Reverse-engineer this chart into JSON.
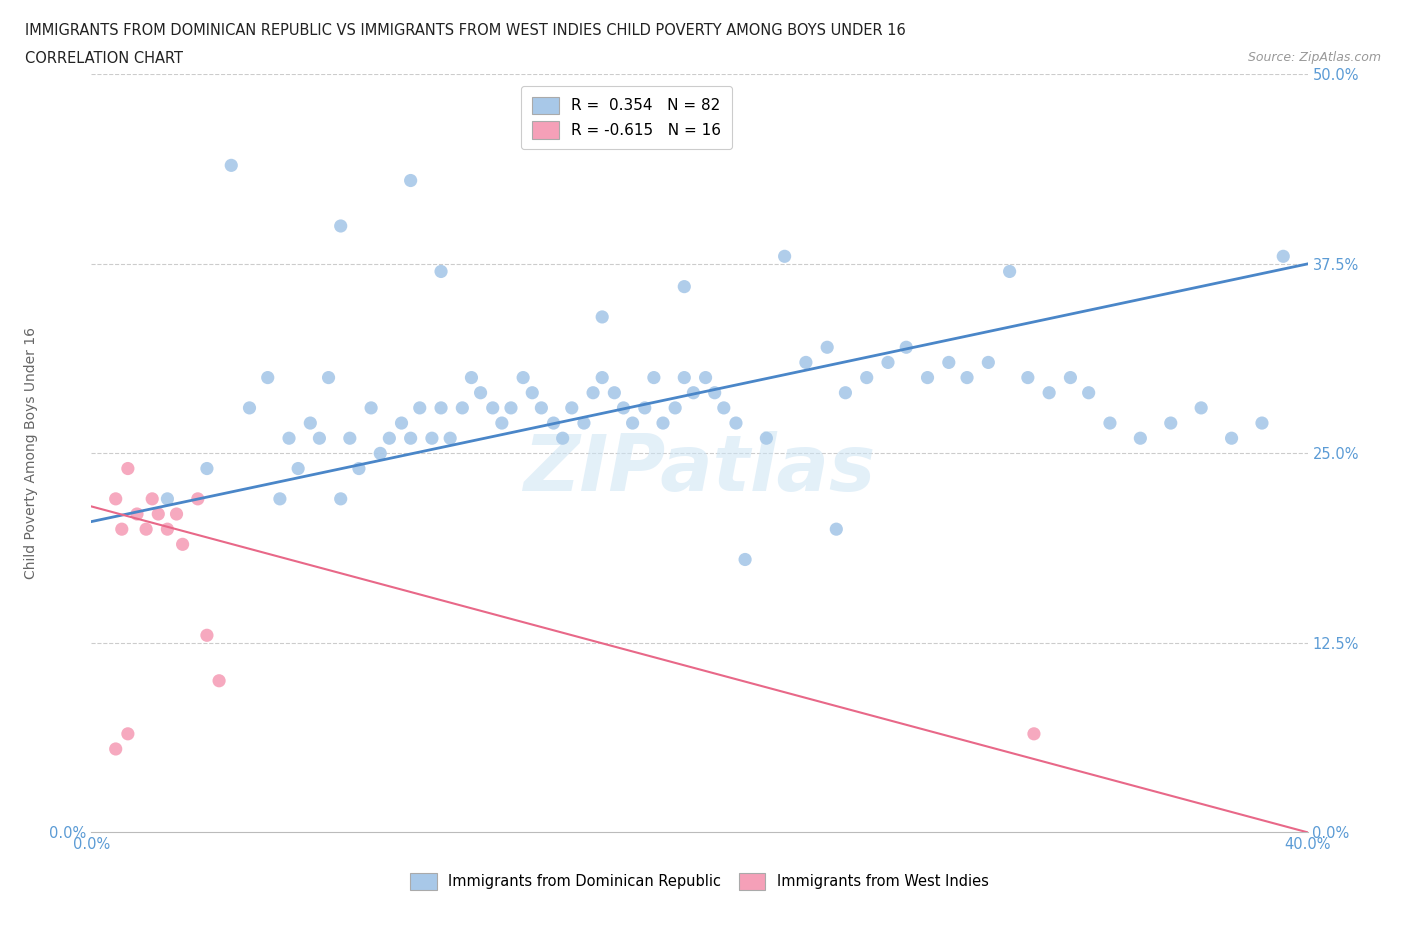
{
  "title_line1": "IMMIGRANTS FROM DOMINICAN REPUBLIC VS IMMIGRANTS FROM WEST INDIES CHILD POVERTY AMONG BOYS UNDER 16",
  "title_line2": "CORRELATION CHART",
  "source": "Source: ZipAtlas.com",
  "ylabel": "Child Poverty Among Boys Under 16",
  "xlim": [
    0.0,
    0.4
  ],
  "ylim": [
    0.0,
    0.5
  ],
  "xticks": [
    0.0,
    0.05,
    0.1,
    0.15,
    0.2,
    0.25,
    0.3,
    0.35,
    0.4
  ],
  "yticks": [
    0.0,
    0.125,
    0.25,
    0.375,
    0.5
  ],
  "ytick_labels": [
    "0.0%",
    "12.5%",
    "25.0%",
    "37.5%",
    "50.0%"
  ],
  "xtick_labels_left": "0.0%",
  "xtick_labels_right": "40.0%",
  "legend_r1": "R =  0.354   N = 82",
  "legend_r2": "R = -0.615   N = 16",
  "color_blue": "#a8c8e8",
  "color_pink": "#f5a0b8",
  "color_blue_line": "#4a86c8",
  "color_pink_line": "#e86888",
  "watermark": "ZIPatlas",
  "blue_trend_x": [
    0.0,
    0.4
  ],
  "blue_trend_y": [
    0.205,
    0.375
  ],
  "pink_trend_x": [
    0.0,
    0.4
  ],
  "pink_trend_y": [
    0.215,
    0.0
  ],
  "blue_scatter_x": [
    0.025,
    0.038,
    0.046,
    0.052,
    0.058,
    0.062,
    0.065,
    0.068,
    0.072,
    0.075,
    0.078,
    0.082,
    0.085,
    0.088,
    0.092,
    0.095,
    0.098,
    0.102,
    0.105,
    0.108,
    0.112,
    0.115,
    0.118,
    0.122,
    0.125,
    0.128,
    0.132,
    0.135,
    0.138,
    0.142,
    0.145,
    0.148,
    0.152,
    0.155,
    0.158,
    0.162,
    0.165,
    0.168,
    0.172,
    0.175,
    0.178,
    0.182,
    0.185,
    0.188,
    0.192,
    0.195,
    0.198,
    0.202,
    0.205,
    0.208,
    0.212,
    0.215,
    0.222,
    0.228,
    0.235,
    0.242,
    0.248,
    0.255,
    0.262,
    0.268,
    0.275,
    0.282,
    0.288,
    0.295,
    0.302,
    0.308,
    0.315,
    0.322,
    0.328,
    0.335,
    0.345,
    0.355,
    0.365,
    0.375,
    0.385,
    0.392,
    0.245,
    0.195,
    0.168,
    0.115,
    0.082,
    0.105
  ],
  "blue_scatter_y": [
    0.22,
    0.24,
    0.44,
    0.28,
    0.3,
    0.22,
    0.26,
    0.24,
    0.27,
    0.26,
    0.3,
    0.22,
    0.26,
    0.24,
    0.28,
    0.25,
    0.26,
    0.27,
    0.26,
    0.28,
    0.26,
    0.28,
    0.26,
    0.28,
    0.3,
    0.29,
    0.28,
    0.27,
    0.28,
    0.3,
    0.29,
    0.28,
    0.27,
    0.26,
    0.28,
    0.27,
    0.29,
    0.3,
    0.29,
    0.28,
    0.27,
    0.28,
    0.3,
    0.27,
    0.28,
    0.3,
    0.29,
    0.3,
    0.29,
    0.28,
    0.27,
    0.18,
    0.26,
    0.38,
    0.31,
    0.32,
    0.29,
    0.3,
    0.31,
    0.32,
    0.3,
    0.31,
    0.3,
    0.31,
    0.37,
    0.3,
    0.29,
    0.3,
    0.29,
    0.27,
    0.26,
    0.27,
    0.28,
    0.26,
    0.27,
    0.38,
    0.2,
    0.36,
    0.34,
    0.37,
    0.4,
    0.43
  ],
  "pink_scatter_x": [
    0.008,
    0.01,
    0.012,
    0.015,
    0.018,
    0.02,
    0.022,
    0.025,
    0.028,
    0.03,
    0.035,
    0.038,
    0.042,
    0.012,
    0.31,
    0.008
  ],
  "pink_scatter_y": [
    0.22,
    0.2,
    0.24,
    0.21,
    0.2,
    0.22,
    0.21,
    0.2,
    0.21,
    0.19,
    0.22,
    0.13,
    0.1,
    0.065,
    0.065,
    0.055
  ]
}
